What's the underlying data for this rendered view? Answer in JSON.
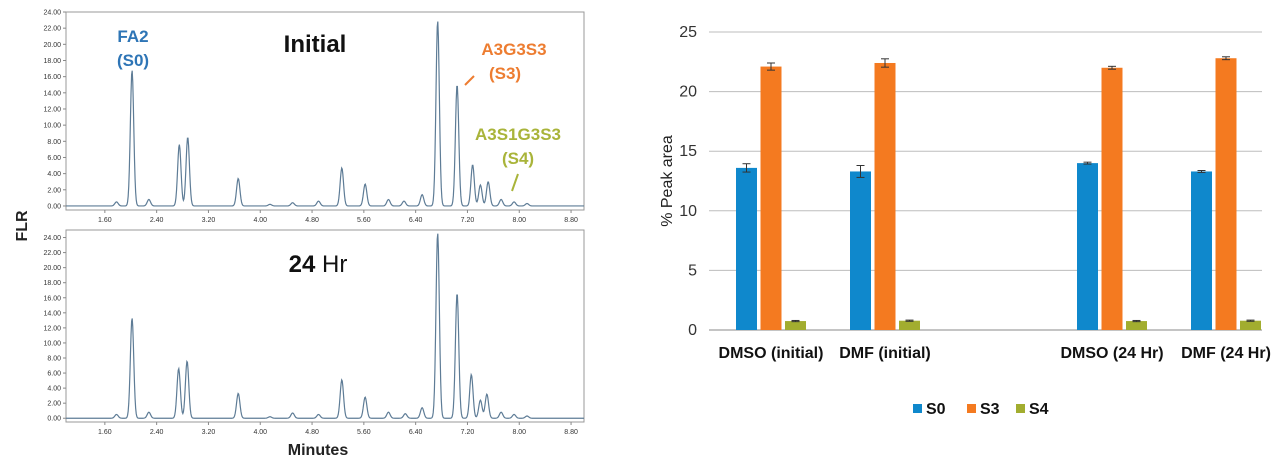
{
  "chart_data": [
    {
      "type": "line",
      "subtype": "chromatogram",
      "shared_ylabel": "FLR",
      "shared_xlabel": "Minutes",
      "xlim": [
        1.0,
        9.0
      ],
      "x_ticks": [
        "1.60",
        "2.40",
        "3.20",
        "4.00",
        "4.80",
        "5.60",
        "6.40",
        "7.20",
        "8.00",
        "8.80"
      ],
      "line_color": "#5e7c96",
      "panels": [
        {
          "title_bold": "Initial",
          "title_normal": "",
          "ylim": [
            -0.5,
            24.0
          ],
          "y_ticks": [
            "0.00",
            "2.00",
            "4.00",
            "6.00",
            "8.00",
            "10.00",
            "12.00",
            "14.00",
            "16.00",
            "18.00",
            "20.00",
            "22.00",
            "24.00"
          ],
          "peaks": [
            {
              "x": 1.78,
              "y": 0.5
            },
            {
              "x": 2.02,
              "y": 16.8
            },
            {
              "x": 2.28,
              "y": 0.8
            },
            {
              "x": 2.75,
              "y": 7.6
            },
            {
              "x": 2.88,
              "y": 8.5
            },
            {
              "x": 3.66,
              "y": 3.4
            },
            {
              "x": 4.15,
              "y": 0.2
            },
            {
              "x": 4.5,
              "y": 0.4
            },
            {
              "x": 4.9,
              "y": 0.6
            },
            {
              "x": 5.26,
              "y": 4.7
            },
            {
              "x": 5.62,
              "y": 2.7
            },
            {
              "x": 5.98,
              "y": 0.8
            },
            {
              "x": 6.22,
              "y": 0.6
            },
            {
              "x": 6.5,
              "y": 1.4
            },
            {
              "x": 6.74,
              "y": 22.9
            },
            {
              "x": 7.04,
              "y": 15.0
            },
            {
              "x": 7.28,
              "y": 5.1
            },
            {
              "x": 7.4,
              "y": 2.6
            },
            {
              "x": 7.52,
              "y": 3.0
            },
            {
              "x": 7.72,
              "y": 0.8
            },
            {
              "x": 7.92,
              "y": 0.5
            },
            {
              "x": 8.12,
              "y": 0.3
            }
          ],
          "annotations": [
            {
              "lines": [
                "FA2",
                "(S0)"
              ],
              "color": "#2e75b6"
            },
            {
              "lines": [
                "A3G3S3",
                "(S3)"
              ],
              "color": "#ed7d31"
            },
            {
              "lines": [
                "A3S1G3S3",
                "(S4)"
              ],
              "color": "#a9b43a"
            }
          ]
        },
        {
          "title_bold": "24",
          "title_normal": " Hr",
          "ylim": [
            -0.5,
            25.0
          ],
          "y_ticks": [
            "0.00",
            "2.00",
            "4.00",
            "6.00",
            "8.00",
            "10.00",
            "12.00",
            "14.00",
            "16.00",
            "18.00",
            "20.00",
            "22.00",
            "24.00"
          ],
          "peaks": [
            {
              "x": 1.78,
              "y": 0.5
            },
            {
              "x": 2.02,
              "y": 13.3
            },
            {
              "x": 2.28,
              "y": 0.8
            },
            {
              "x": 2.74,
              "y": 6.6
            },
            {
              "x": 2.87,
              "y": 7.6
            },
            {
              "x": 3.66,
              "y": 3.3
            },
            {
              "x": 4.15,
              "y": 0.2
            },
            {
              "x": 4.5,
              "y": 0.7
            },
            {
              "x": 4.9,
              "y": 0.5
            },
            {
              "x": 5.26,
              "y": 5.1
            },
            {
              "x": 5.62,
              "y": 2.8
            },
            {
              "x": 5.98,
              "y": 0.8
            },
            {
              "x": 6.24,
              "y": 0.6
            },
            {
              "x": 6.5,
              "y": 1.4
            },
            {
              "x": 6.74,
              "y": 24.6
            },
            {
              "x": 7.04,
              "y": 16.6
            },
            {
              "x": 7.26,
              "y": 5.8
            },
            {
              "x": 7.4,
              "y": 2.4
            },
            {
              "x": 7.5,
              "y": 3.2
            },
            {
              "x": 7.72,
              "y": 0.8
            },
            {
              "x": 7.92,
              "y": 0.5
            },
            {
              "x": 8.12,
              "y": 0.3
            }
          ],
          "annotations": []
        }
      ]
    },
    {
      "type": "bar",
      "ylabel": "% Peak area",
      "ylim": [
        0,
        25
      ],
      "y_ticks": [
        0,
        5,
        10,
        15,
        20,
        25
      ],
      "grid": true,
      "legend_position": "bottom",
      "categories": [
        "DMSO (initial)",
        "DMF (initial)",
        "DMSO (24 Hr)",
        "DMF (24 Hr)"
      ],
      "series": [
        {
          "name": "S0",
          "color": "#0f88cc",
          "values": [
            13.6,
            13.3,
            14.0,
            13.3
          ],
          "errors": [
            0.35,
            0.5,
            0.08,
            0.08
          ]
        },
        {
          "name": "S3",
          "color": "#f47a20",
          "values": [
            22.1,
            22.4,
            22.0,
            22.8
          ],
          "errors": [
            0.3,
            0.35,
            0.12,
            0.12
          ]
        },
        {
          "name": "S4",
          "color": "#a2ad2f",
          "values": [
            0.75,
            0.78,
            0.75,
            0.78
          ],
          "errors": [
            0.05,
            0.05,
            0.05,
            0.05
          ]
        }
      ]
    }
  ]
}
